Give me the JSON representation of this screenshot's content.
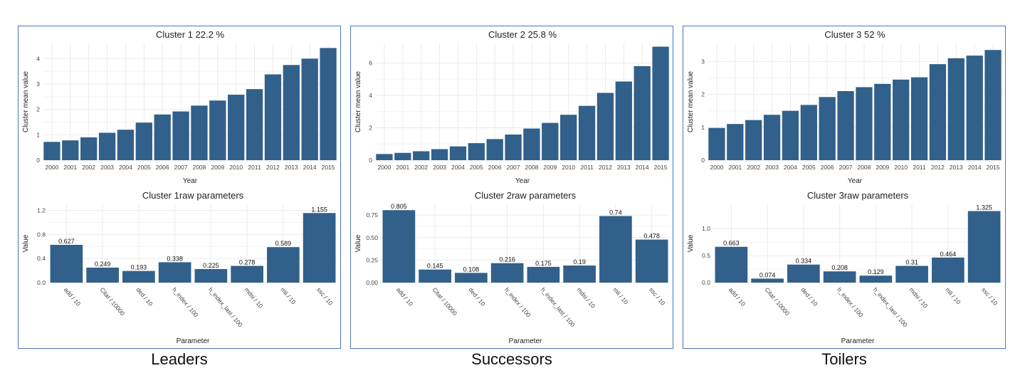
{
  "colors": {
    "bar": "#31608a",
    "panel_border": "#4a78b5",
    "grid": "#ebebeb"
  },
  "chart_data": [
    {
      "type": "bar",
      "caption": "Leaders",
      "top": {
        "title": "Cluster  1 22.2 %",
        "xlabel": "Year",
        "ylabel": "Cluster mean value",
        "ylim": [
          0,
          4.6
        ],
        "yticks": [
          0,
          1,
          2,
          3,
          4
        ],
        "ytick_labels": [
          "0",
          "1",
          "2",
          "3",
          "4"
        ],
        "categories": [
          "2000",
          "2001",
          "2002",
          "2003",
          "2004",
          "2005",
          "2006",
          "2007",
          "2008",
          "2009",
          "2010",
          "2011",
          "2012",
          "2013",
          "2014",
          "2015"
        ],
        "values": [
          0.72,
          0.78,
          0.9,
          1.08,
          1.2,
          1.48,
          1.8,
          1.92,
          2.15,
          2.35,
          2.58,
          2.8,
          3.38,
          3.75,
          4.0,
          4.42
        ]
      },
      "bottom": {
        "title": "Cluster 1raw parameters",
        "xlabel": "Parameter",
        "ylabel": "Value",
        "ylim": [
          0,
          1.3
        ],
        "yticks": [
          0,
          0.4,
          0.8,
          1.2
        ],
        "ytick_labels": [
          "0.0",
          "0.4",
          "0.8",
          "1.2"
        ],
        "categories": [
          "add / 10",
          "Citat / 10000",
          "ded / 10",
          "h_index / 100",
          "h_index_last / 100",
          "mdsi / 10",
          "mli / 10",
          "ssc / 10"
        ],
        "values": [
          0.627,
          0.249,
          0.193,
          0.338,
          0.225,
          0.278,
          0.589,
          1.155
        ],
        "data_labels": [
          "0.627",
          "0.249",
          "0.193",
          "0.338",
          "0.225",
          "0.278",
          "0.589",
          "1.155"
        ]
      }
    },
    {
      "type": "bar",
      "caption": "Successors",
      "top": {
        "title": "Cluster  2 25.8 %",
        "xlabel": "Year",
        "ylabel": "Cluster mean value",
        "ylim": [
          0,
          7.2
        ],
        "yticks": [
          0,
          2,
          4,
          6
        ],
        "ytick_labels": [
          "0",
          "2",
          "4",
          "6"
        ],
        "categories": [
          "2000",
          "2001",
          "2002",
          "2003",
          "2004",
          "2005",
          "2006",
          "2007",
          "2008",
          "2009",
          "2010",
          "2011",
          "2012",
          "2013",
          "2014",
          "2015"
        ],
        "values": [
          0.38,
          0.45,
          0.55,
          0.68,
          0.85,
          1.05,
          1.3,
          1.58,
          1.95,
          2.3,
          2.8,
          3.35,
          4.15,
          4.85,
          5.8,
          7.0
        ]
      },
      "bottom": {
        "title": "Cluster 2raw parameters",
        "xlabel": "Parameter",
        "ylabel": "Value",
        "ylim": [
          0,
          0.87
        ],
        "yticks": [
          0,
          0.25,
          0.5,
          0.75
        ],
        "ytick_labels": [
          "0.00",
          "0.25",
          "0.50",
          "0.75"
        ],
        "categories": [
          "add / 10",
          "Citat / 10000",
          "ded / 10",
          "h_index / 100",
          "h_index_last / 100",
          "mdsi / 10",
          "mli / 10",
          "ssc / 10"
        ],
        "values": [
          0.805,
          0.145,
          0.108,
          0.216,
          0.175,
          0.19,
          0.74,
          0.478
        ],
        "data_labels": [
          "0.805",
          "0.145",
          "0.108",
          "0.216",
          "0.175",
          "0.19",
          "0.74",
          "0.478"
        ]
      }
    },
    {
      "type": "bar",
      "caption": "Toilers",
      "top": {
        "title": "Cluster  3 52 %",
        "xlabel": "Year",
        "ylabel": "Cluster mean value",
        "ylim": [
          0,
          3.55
        ],
        "yticks": [
          0,
          1,
          2,
          3
        ],
        "ytick_labels": [
          "0",
          "1",
          "2",
          "3"
        ],
        "categories": [
          "2000",
          "2001",
          "2002",
          "2003",
          "2004",
          "2005",
          "2006",
          "2007",
          "2008",
          "2009",
          "2010",
          "2011",
          "2012",
          "2013",
          "2014",
          "2015"
        ],
        "values": [
          0.98,
          1.1,
          1.22,
          1.38,
          1.5,
          1.68,
          1.92,
          2.1,
          2.22,
          2.32,
          2.45,
          2.52,
          2.92,
          3.1,
          3.18,
          3.35
        ]
      },
      "bottom": {
        "title": "Cluster 3raw parameters",
        "xlabel": "Parameter",
        "ylabel": "Value",
        "ylim": [
          0,
          1.45
        ],
        "yticks": [
          0,
          0.5,
          1.0
        ],
        "ytick_labels": [
          "0.0",
          "0.5",
          "1.0"
        ],
        "categories": [
          "add / 10",
          "Citat / 10000",
          "ded / 10",
          "h_index / 100",
          "h_index_last / 100",
          "mdsi / 10",
          "mli / 10",
          "ssc / 10"
        ],
        "values": [
          0.663,
          0.074,
          0.334,
          0.208,
          0.129,
          0.31,
          0.464,
          1.325
        ],
        "data_labels": [
          "0.663",
          "0.074",
          "0.334",
          "0.208",
          "0.129",
          "0.31",
          "0.464",
          "1.325"
        ]
      }
    }
  ]
}
